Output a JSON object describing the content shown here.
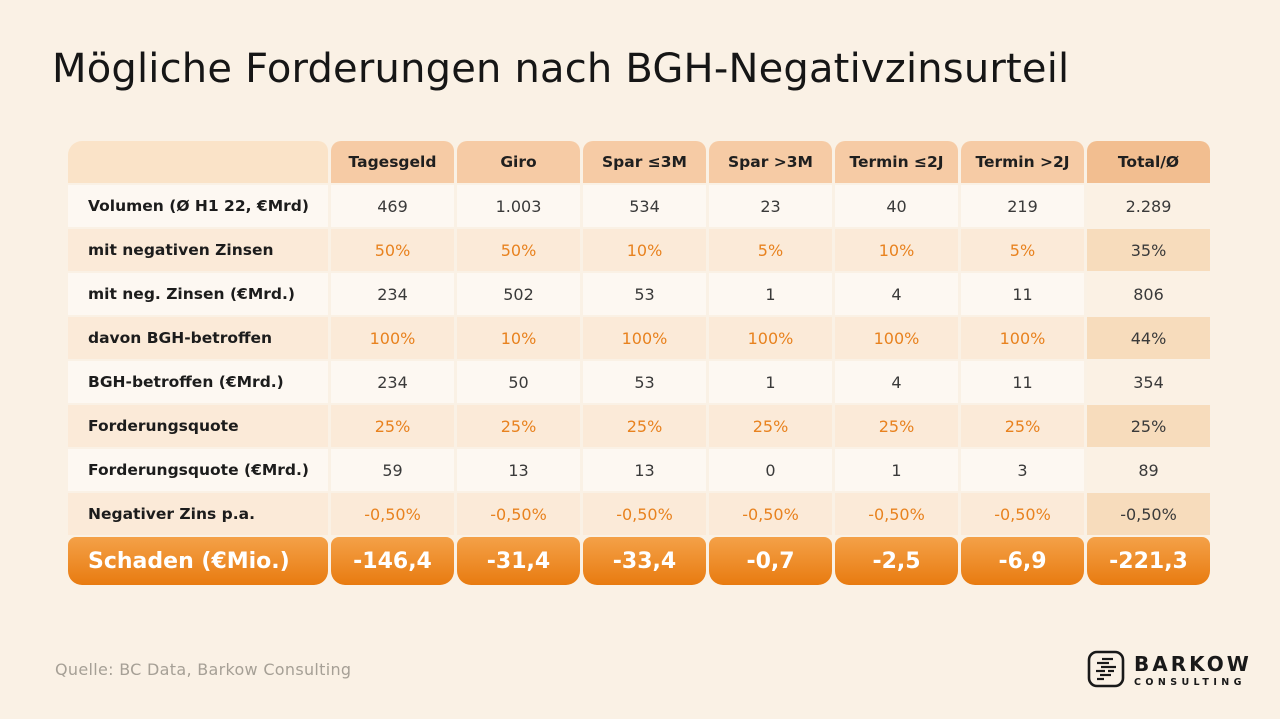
{
  "page": {
    "title": "Mögliche Forderungen nach BGH-Negativzinsurteil",
    "source": "Quelle: BC Data, Barkow Consulting",
    "background": "#FAF1E5"
  },
  "logo": {
    "name": "BARKOW",
    "subtitle": "CONSULTING",
    "icon": "lines-icon"
  },
  "colors": {
    "accent_orange_text": "#E8821F",
    "header_bg": "#F6CBA5",
    "header_total_bg": "#F2BE90",
    "corner_bg": "#FAE3C8",
    "percent_row_bg": "#FBEAD8",
    "percent_row_total_bg": "#F7DCBC",
    "number_row_bg": "#FDF8F2",
    "total_row_gradient_top": "#F4A148",
    "total_row_gradient_bottom": "#E87B10",
    "page_bg": "#FAF1E5"
  },
  "chart_data": {
    "type": "table",
    "title": "Mögliche Forderungen nach BGH-Negativzinsurteil",
    "row_header": "",
    "columns": [
      "Tagesgeld",
      "Giro",
      "Spar ≤3M",
      "Spar >3M",
      "Termin ≤2J",
      "Termin >2J",
      "Total/Ø"
    ],
    "rows": [
      {
        "label": "Volumen (Ø H1 22, €Mrd)",
        "type": "number",
        "values": [
          "469",
          "1.003",
          "534",
          "23",
          "40",
          "219",
          "2.289"
        ]
      },
      {
        "label": "mit negativen Zinsen",
        "type": "percent",
        "values": [
          "50%",
          "50%",
          "10%",
          "5%",
          "10%",
          "5%",
          "35%"
        ]
      },
      {
        "label": "mit neg. Zinsen (€Mrd.)",
        "type": "number",
        "values": [
          "234",
          "502",
          "53",
          "1",
          "4",
          "11",
          "806"
        ]
      },
      {
        "label": "davon BGH-betroffen",
        "type": "percent",
        "values": [
          "100%",
          "10%",
          "100%",
          "100%",
          "100%",
          "100%",
          "44%"
        ]
      },
      {
        "label": "BGH-betroffen (€Mrd.)",
        "type": "number",
        "values": [
          "234",
          "50",
          "53",
          "1",
          "4",
          "11",
          "354"
        ]
      },
      {
        "label": "Forderungsquote",
        "type": "percent",
        "values": [
          "25%",
          "25%",
          "25%",
          "25%",
          "25%",
          "25%",
          "25%"
        ]
      },
      {
        "label": "Forderungsquote (€Mrd.)",
        "type": "number",
        "values": [
          "59",
          "13",
          "13",
          "0",
          "1",
          "3",
          "89"
        ]
      },
      {
        "label": "Negativer Zins p.a.",
        "type": "percent",
        "values": [
          "-0,50%",
          "-0,50%",
          "-0,50%",
          "-0,50%",
          "-0,50%",
          "-0,50%",
          "-0,50%"
        ]
      },
      {
        "label": "Schaden (€Mio.)",
        "type": "total",
        "values": [
          "-146,4",
          "-31,4",
          "-33,4",
          "-0,7",
          "-2,5",
          "-6,9",
          "-221,3"
        ]
      }
    ]
  }
}
